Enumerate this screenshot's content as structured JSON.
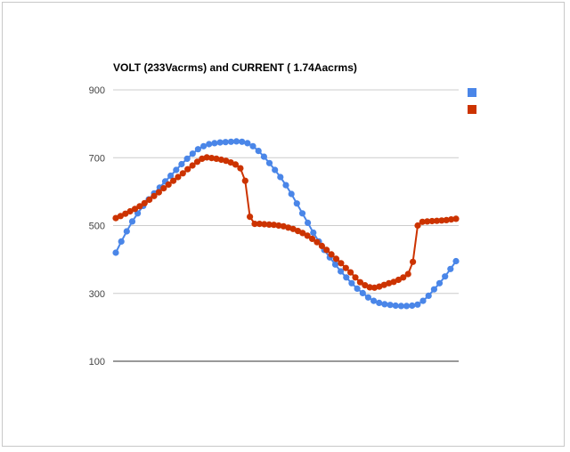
{
  "chart_data": {
    "type": "line",
    "title": "VOLT (233Vacrms) and CURRENT ( 1.74Aacrms)",
    "xlabel": "",
    "ylabel": "",
    "ylim": [
      100,
      900
    ],
    "yticks": [
      "900",
      "700",
      "500",
      "300",
      "100"
    ],
    "grid": true,
    "legend_position": "top-right",
    "series": [
      {
        "color": "#4a86e8",
        "values": [
          420,
          453,
          483,
          512,
          536,
          558,
          577,
          595,
          612,
          630,
          647,
          664,
          681,
          697,
          712,
          725,
          734,
          740,
          743,
          745,
          746,
          747,
          748,
          747,
          743,
          734,
          720,
          703,
          684,
          664,
          643,
          619,
          593,
          565,
          536,
          508,
          479,
          453,
          428,
          406,
          385,
          365,
          347,
          330,
          314,
          301,
          288,
          278,
          272,
          268,
          266,
          264,
          263,
          263,
          264,
          267,
          278,
          293,
          312,
          330,
          350,
          372,
          395
        ]
      },
      {
        "color": "#cc3300",
        "values": [
          522,
          528,
          535,
          542,
          549,
          557,
          566,
          576,
          587,
          598,
          610,
          621,
          632,
          643,
          654,
          666,
          677,
          688,
          697,
          701,
          699,
          697,
          694,
          691,
          686,
          680,
          669,
          632,
          526,
          505,
          505,
          504,
          503,
          502,
          500,
          498,
          494,
          490,
          484,
          478,
          470,
          461,
          451,
          440,
          428,
          415,
          402,
          389,
          375,
          362,
          347,
          333,
          324,
          318,
          317,
          320,
          325,
          330,
          334,
          340,
          347,
          357,
          393,
          500,
          511,
          512,
          513,
          514,
          515,
          516,
          518,
          520
        ]
      }
    ]
  }
}
